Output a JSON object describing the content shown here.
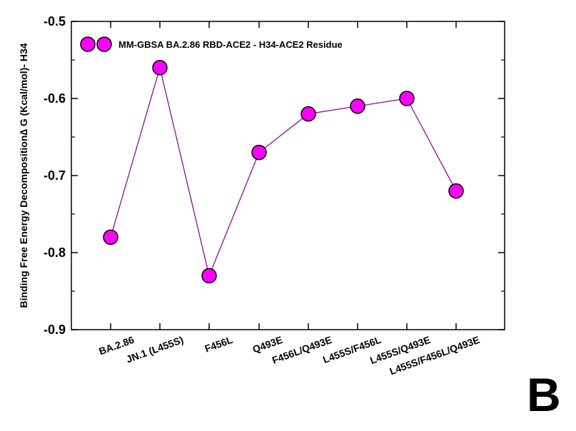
{
  "panel_label": "B",
  "colors": {
    "marker_fill": "#ff00ff",
    "marker_stroke": "#000000",
    "line": "#800080"
  },
  "chart_data": {
    "type": "line",
    "title": "",
    "xlabel": "",
    "ylabel": "Binding Free Energy Decomposition∆ G (Kcal/mol)- H34",
    "ylim": [
      -0.9,
      -0.5
    ],
    "y_ticks": [
      -0.9,
      -0.8,
      -0.7,
      -0.6,
      -0.5
    ],
    "grid": false,
    "legend_position": "top-left",
    "categories": [
      "BA.2.86",
      "JN.1 (L455S)",
      "F456L",
      "Q493E",
      "F456L/Q493E",
      "L455S/F456L",
      "L455S/Q493E",
      "L455S/F456L/Q493E"
    ],
    "series": [
      {
        "name": "MM-GBSA BA.2.86 RBD-ACE2 -  H34-ACE2 Residue",
        "values": [
          -0.78,
          -0.56,
          -0.83,
          -0.67,
          -0.62,
          -0.61,
          -0.6,
          -0.72
        ]
      }
    ]
  }
}
